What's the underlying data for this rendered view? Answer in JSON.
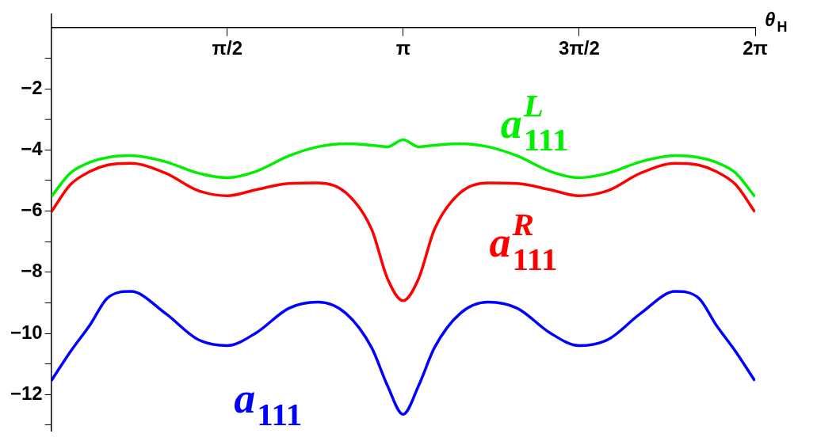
{
  "chart_data": {
    "type": "line",
    "xlabel": "θ$_{H}$",
    "xlim": [
      0,
      6.2832
    ],
    "ylim": [
      -13.2,
      0.45
    ],
    "xticks": [
      {
        "value": 1.5708,
        "label": "π/2"
      },
      {
        "value": 3.1416,
        "label": "π"
      },
      {
        "value": 4.7124,
        "label": "3π/2"
      },
      {
        "value": 6.2832,
        "label": "2π"
      }
    ],
    "yticks": [
      {
        "value": -1,
        "label": null
      },
      {
        "value": -2,
        "label": "−2"
      },
      {
        "value": -3,
        "label": null
      },
      {
        "value": -4,
        "label": "−4"
      },
      {
        "value": -5,
        "label": null
      },
      {
        "value": -6,
        "label": "−6"
      },
      {
        "value": -7,
        "label": null
      },
      {
        "value": -8,
        "label": "−8"
      },
      {
        "value": -9,
        "label": null
      },
      {
        "value": -10,
        "label": "−10"
      },
      {
        "value": -11,
        "label": null
      },
      {
        "value": -12,
        "label": "−12"
      },
      {
        "value": -13,
        "label": null
      }
    ],
    "x": [
      0,
      0.17,
      0.35,
      0.5,
      0.71,
      1.02,
      1.31,
      1.57,
      1.83,
      2.12,
      2.38,
      2.63,
      2.86,
      3.0,
      3.14,
      3.28,
      3.42,
      3.65,
      3.9,
      4.16,
      4.45,
      4.71,
      4.97,
      5.26,
      5.57,
      5.78,
      5.93,
      6.11,
      6.28
    ],
    "series": [
      {
        "name": "a$_{111}$",
        "color": "#0000ff",
        "values": [
          -11.55,
          -10.6,
          -9.7,
          -8.85,
          -8.63,
          -9.35,
          -10.2,
          -10.4,
          -9.98,
          -9.18,
          -8.98,
          -9.35,
          -10.47,
          -11.7,
          -12.65,
          -11.7,
          -10.47,
          -9.35,
          -8.98,
          -9.18,
          -9.98,
          -10.4,
          -10.2,
          -9.35,
          -8.63,
          -8.85,
          -9.7,
          -10.6,
          -11.55
        ]
      },
      {
        "name": "a$^{R}$$_{111}$",
        "color": "#ff0000",
        "values": [
          -6.03,
          -5.14,
          -4.7,
          -4.5,
          -4.44,
          -4.76,
          -5.33,
          -5.5,
          -5.3,
          -5.1,
          -5.08,
          -5.4,
          -6.6,
          -8.2,
          -8.93,
          -8.2,
          -6.6,
          -5.4,
          -5.08,
          -5.1,
          -5.3,
          -5.5,
          -5.33,
          -4.76,
          -4.44,
          -4.5,
          -4.7,
          -5.14,
          -6.03
        ]
      },
      {
        "name": "a$^{L}$$_{111}$",
        "color": "#00ee00",
        "values": [
          -5.53,
          -4.76,
          -4.4,
          -4.25,
          -4.19,
          -4.39,
          -4.76,
          -4.91,
          -4.7,
          -4.2,
          -3.9,
          -3.8,
          -3.85,
          -3.9,
          -3.67,
          -3.9,
          -3.85,
          -3.8,
          -3.9,
          -4.2,
          -4.7,
          -4.91,
          -4.76,
          -4.39,
          -4.19,
          -4.25,
          -4.4,
          -4.76,
          -5.53
        ]
      }
    ],
    "legend": false,
    "grid": false,
    "marker": "none",
    "line_style": "solid"
  }
}
